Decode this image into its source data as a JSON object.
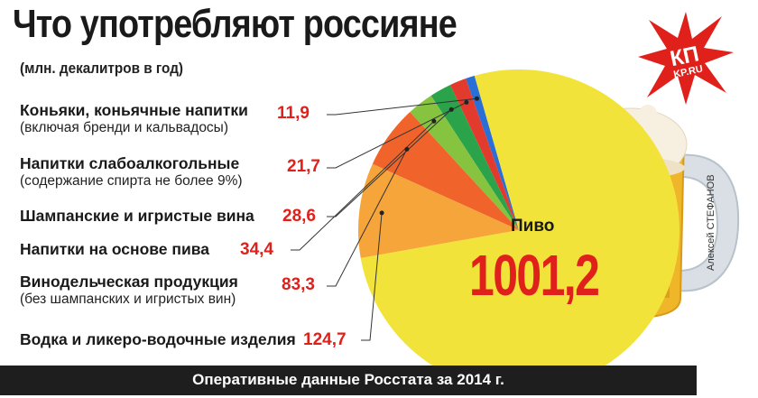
{
  "chart_data": {
    "type": "pie",
    "title": "Что употребляют россияне",
    "subtitle": "(млн. декалитров в год)",
    "categories": [
      {
        "name": "Коньяки, коньячные напитки",
        "note": "(включая бренди и кальвадосы)",
        "value": 11.9,
        "label": "11,9",
        "color": "#2a6fd6"
      },
      {
        "name": "Напитки слабоалкогольные",
        "note": "(содержание спирта не более 9%)",
        "value": 21.7,
        "label": "21,7",
        "color": "#e23a2c"
      },
      {
        "name": "Шампанские и игристые вина",
        "note": "",
        "value": 28.6,
        "label": "28,6",
        "color": "#2aa34a"
      },
      {
        "name": "Напитки на основе пива",
        "note": "",
        "value": 34.4,
        "label": "34,4",
        "color": "#86c440"
      },
      {
        "name": "Винодельческая продукция",
        "note": "(без шампанских и игристых вин)",
        "value": 83.3,
        "label": "83,3",
        "color": "#f0642c"
      },
      {
        "name": "Водка и ликеро-водочные изделия",
        "note": "",
        "value": 124.7,
        "label": "124,7",
        "color": "#f6a53a"
      },
      {
        "name": "Пиво",
        "note": "",
        "value": 1001.2,
        "label": "1001,2",
        "color": "#f2e33a"
      }
    ],
    "source": "Оперативные данные Росстата за 2014 г.",
    "credit": "Алексей СТЕФАНОВ",
    "brand": {
      "line1": "КП",
      "line2": "KP.RU"
    }
  }
}
